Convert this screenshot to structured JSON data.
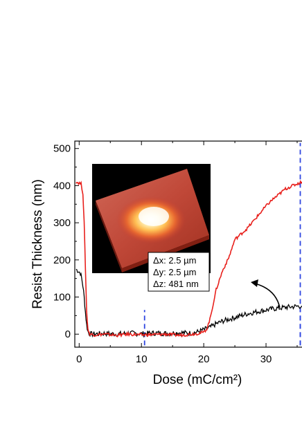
{
  "chart_data": {
    "type": "line",
    "xlabel": "Dose (mC/cm²)",
    "ylabel": "Resist Thickness (nm)",
    "xlim": [
      -0.7,
      36
    ],
    "ylim": [
      -35,
      520
    ],
    "x_ticks": [
      "0",
      "10",
      "20",
      "30"
    ],
    "y_ticks": [
      "0",
      "100",
      "200",
      "300",
      "400",
      "500"
    ],
    "grid": false,
    "series": [
      {
        "color": "#e8201c",
        "x": [
          -0.5,
          0.3,
          0.6,
          0.8,
          1.0,
          1.2,
          1.4,
          1.6,
          1.8,
          2.5,
          4,
          6,
          8,
          10,
          12,
          14,
          16,
          18,
          19,
          20,
          20.5,
          21,
          21.5,
          22,
          23,
          24,
          25,
          26,
          27,
          28,
          29,
          30,
          31,
          32,
          33,
          34,
          35,
          35.8
        ],
        "y": [
          410,
          405,
          380,
          300,
          180,
          60,
          15,
          3,
          0,
          -2,
          0,
          -3,
          0,
          -2,
          -1,
          0,
          -3,
          0,
          2,
          5,
          15,
          40,
          80,
          120,
          170,
          205,
          255,
          270,
          285,
          305,
          325,
          345,
          362,
          375,
          390,
          398,
          405,
          410
        ]
      },
      {
        "color": "#000000",
        "x": [
          -0.5,
          0.2,
          0.4,
          0.6,
          0.8,
          1.0,
          1.2,
          1.4,
          1.6,
          2,
          4,
          6,
          8,
          10,
          12,
          14,
          16,
          18,
          19,
          20,
          21,
          22,
          23,
          25,
          27,
          29,
          31,
          33,
          35,
          35.8
        ],
        "y": [
          175,
          165,
          150,
          130,
          100,
          60,
          25,
          8,
          2,
          0,
          2,
          0,
          3,
          1,
          3,
          2,
          4,
          3,
          6,
          12,
          18,
          28,
          35,
          45,
          55,
          62,
          68,
          72,
          75,
          76
        ]
      }
    ],
    "reference_lines_x": [
      10.5,
      35.5
    ],
    "annotations": [
      "Δx: 2.5  µm",
      "Δy: 2.5  µm",
      "Δz: 481 nm"
    ]
  }
}
